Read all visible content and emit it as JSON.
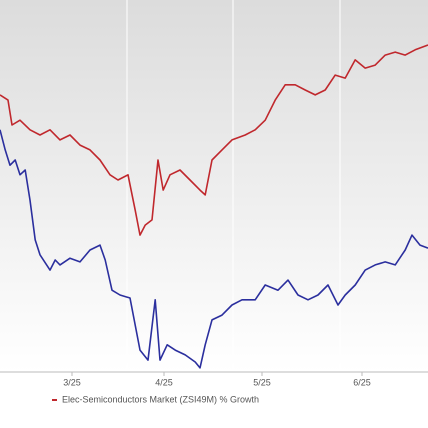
{
  "chart_data": {
    "type": "line",
    "xlim": [
      0,
      107
    ],
    "ylim": [
      0,
      100
    ],
    "xticks": [
      {
        "value": 18,
        "label": "3/25"
      },
      {
        "value": 41,
        "label": "4/25"
      },
      {
        "value": 65.5,
        "label": "5/25"
      },
      {
        "value": 90.5,
        "label": "6/25"
      }
    ],
    "series": [
      {
        "name": "Elec-Semiconductors Market (ZSI49M) % Growth",
        "color": "#c0282d",
        "x": [
          0,
          2,
          3,
          5,
          7.5,
          10,
          12.5,
          15,
          17.5,
          20,
          22.5,
          25,
          27.5,
          29.5,
          32,
          33.8,
          35,
          36.3,
          38,
          39.5,
          40.8,
          42.5,
          45,
          47.5,
          50,
          51.3,
          53,
          55.5,
          58,
          61.3,
          63.8,
          66.3,
          68.8,
          71.3,
          73.8,
          76.3,
          78.8,
          81.3,
          83.8,
          86.3,
          88.8,
          91.3,
          93.8,
          96.3,
          98.8,
          101.3,
          103.8,
          107
        ],
        "values": [
          74.5,
          73.1,
          66.4,
          67.7,
          65.1,
          63.7,
          65.1,
          62.4,
          63.7,
          61,
          59.7,
          57,
          53,
          51.6,
          53,
          43.5,
          36.8,
          39.5,
          40.9,
          57,
          48.9,
          53,
          54.3,
          51.6,
          48.9,
          47.6,
          57,
          59.7,
          62.4,
          63.7,
          65.1,
          67.7,
          73.1,
          77.2,
          77.2,
          75.8,
          74.5,
          75.8,
          79.8,
          79,
          83.9,
          81.7,
          82.5,
          85.2,
          86,
          85.2,
          86.6,
          87.9
        ]
      },
      {
        "color": "#2b2f9e",
        "x": [
          0,
          1.3,
          2.5,
          3.8,
          5,
          6.3,
          7.5,
          8.8,
          10,
          12.5,
          13.8,
          15,
          17.5,
          20,
          22.5,
          25,
          26.3,
          28,
          30,
          32.5,
          35,
          37,
          38.8,
          40,
          41.8,
          43.8,
          46.3,
          48.8,
          50,
          51.3,
          53,
          55.5,
          58,
          60.5,
          63.8,
          66.3,
          69.5,
          72,
          74.5,
          77,
          79.5,
          82,
          84.5,
          86.3,
          88.8,
          91.3,
          93.8,
          96.3,
          98.8,
          101.3,
          103,
          105,
          107
        ],
        "values": [
          65.1,
          59.7,
          55.6,
          57,
          53,
          54.3,
          46.2,
          35.5,
          31.5,
          27.4,
          30.1,
          28.8,
          30.6,
          29.6,
          32.8,
          34.1,
          30.1,
          22,
          20.7,
          19.9,
          5.9,
          3.2,
          19.4,
          3.2,
          7.3,
          5.9,
          4.6,
          2.7,
          1.1,
          7.3,
          14,
          15.3,
          18,
          19.4,
          19.4,
          23.4,
          22,
          24.7,
          20.7,
          19.4,
          20.7,
          23.4,
          18,
          20.7,
          23.4,
          27.4,
          28.8,
          29.6,
          28.8,
          32.8,
          36.8,
          34.1,
          33.3
        ]
      }
    ]
  }
}
